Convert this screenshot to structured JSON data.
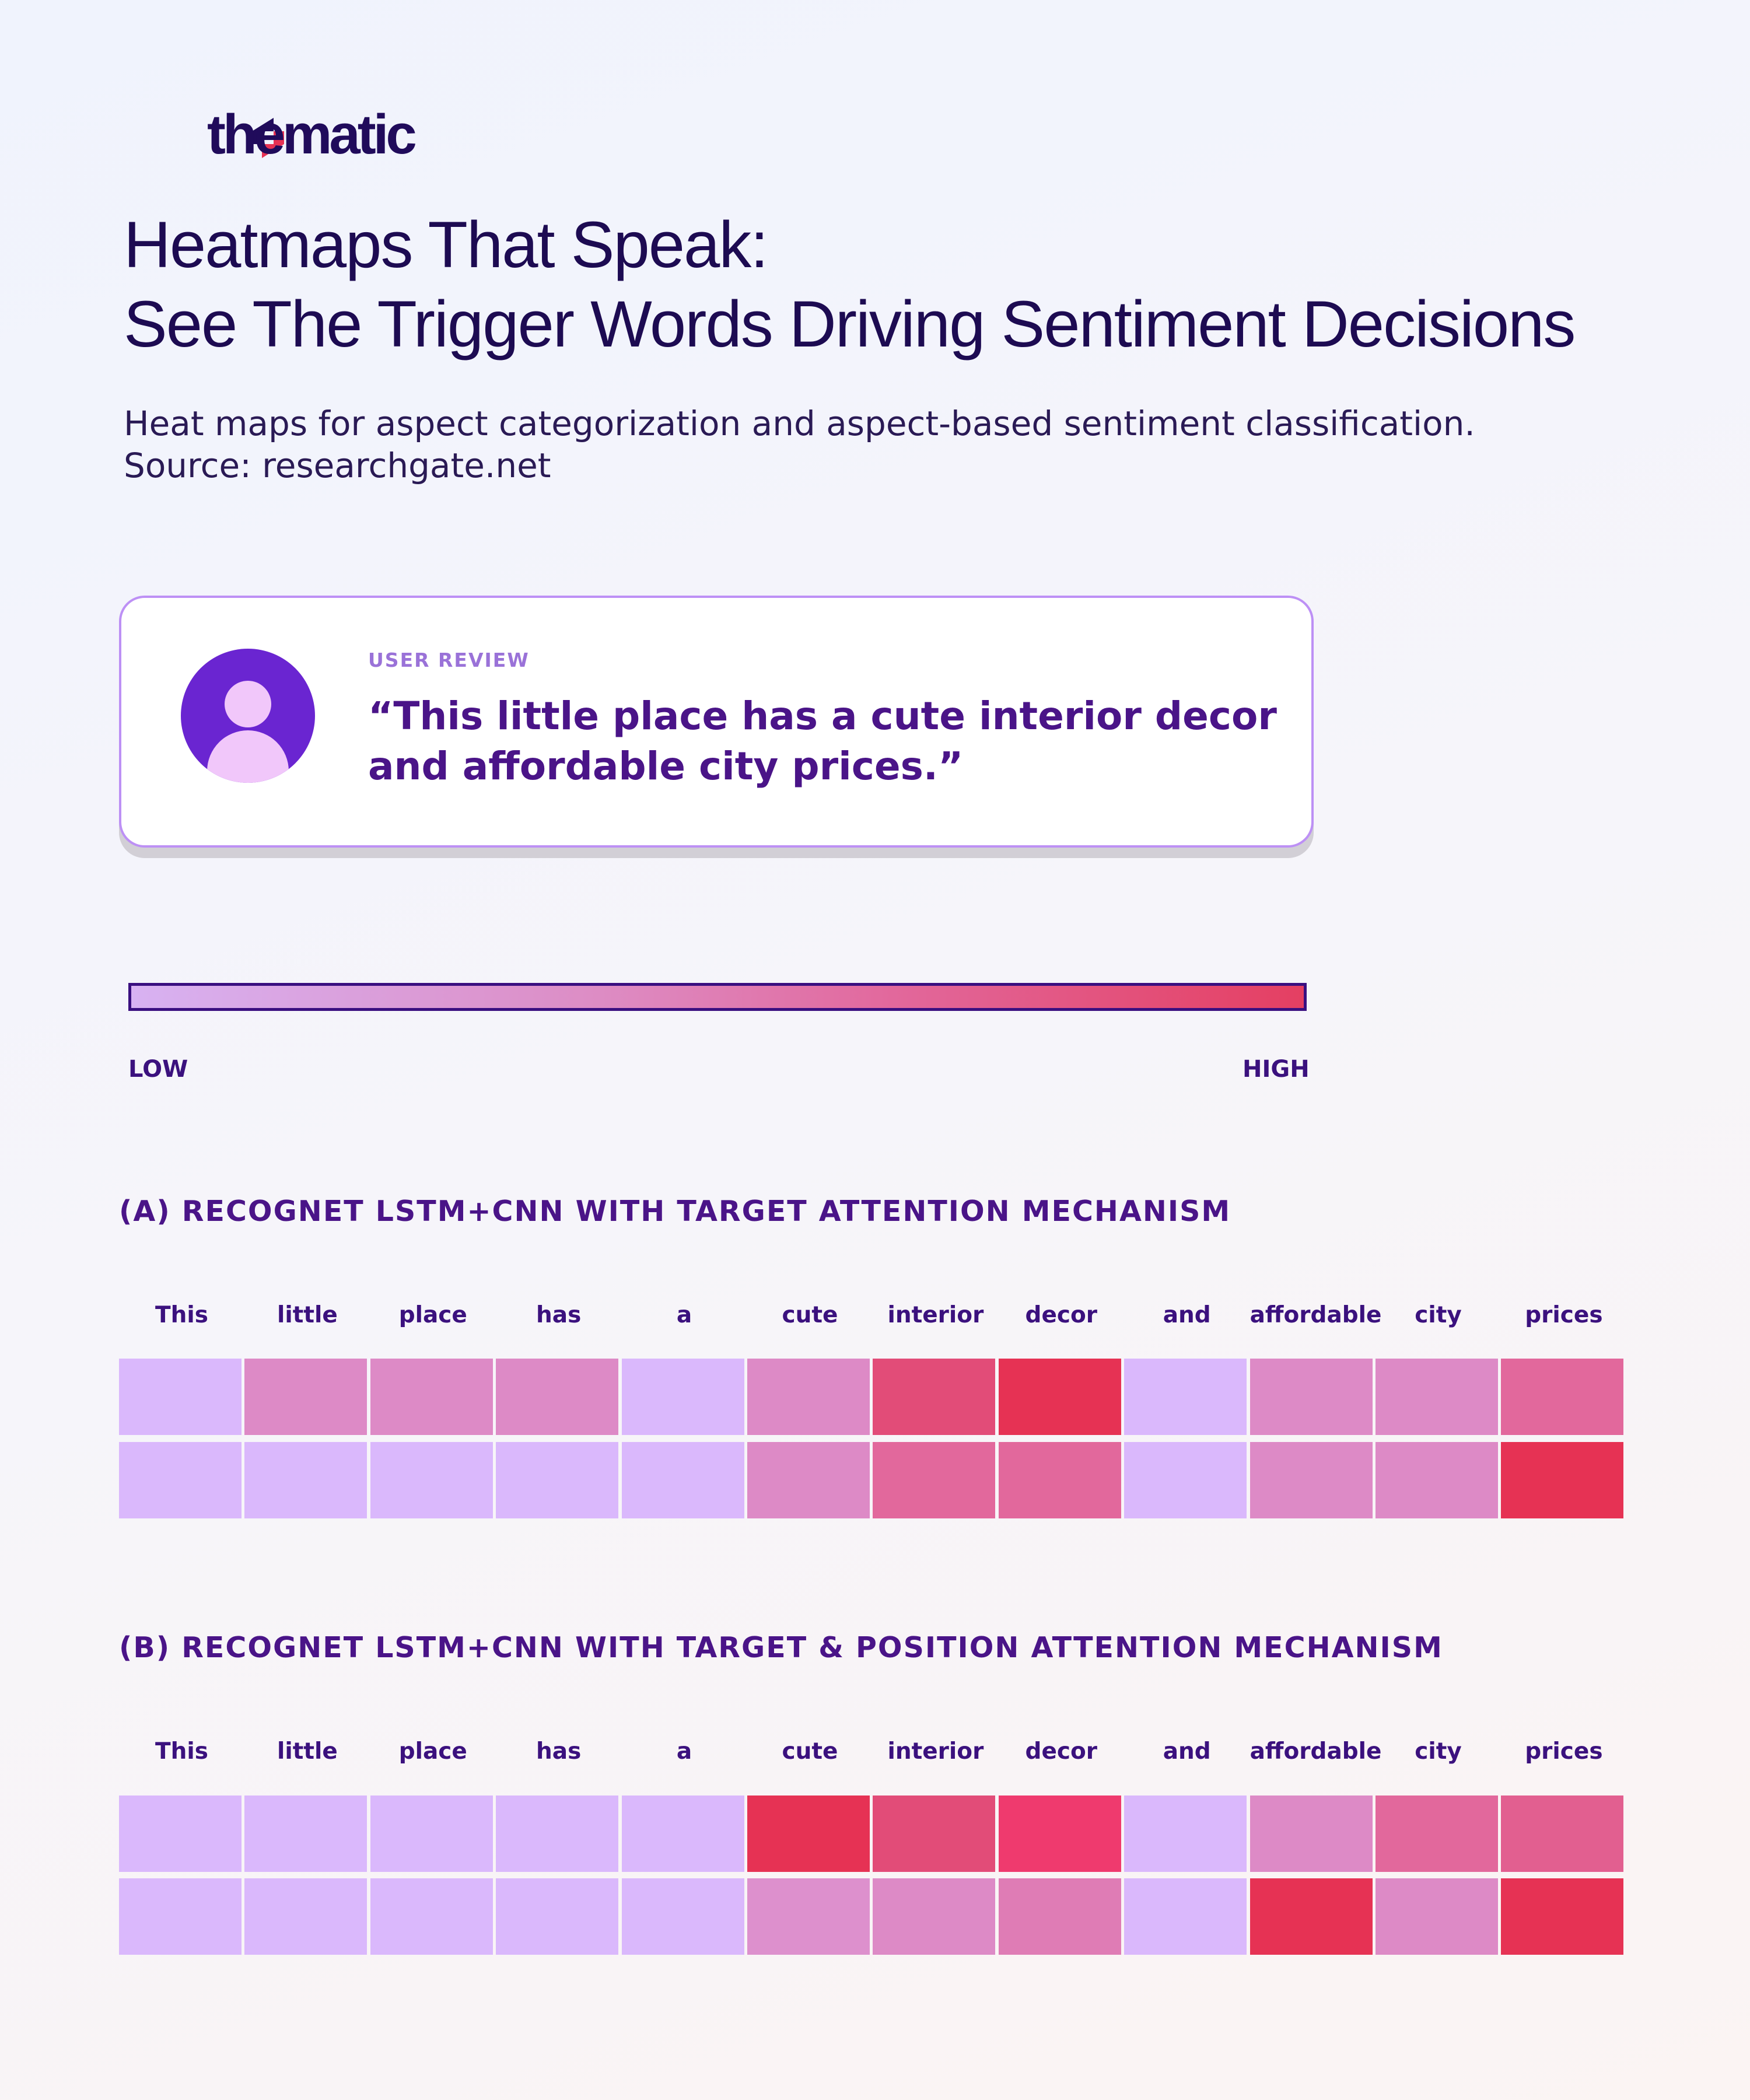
{
  "brand": {
    "name": "thematic",
    "colors": {
      "navy": "#200b5b",
      "red": "#e63254"
    }
  },
  "header": {
    "title_line1": "Heatmaps That Speak:",
    "title_line2": "See The Trigger Words Driving Sentiment Decisions",
    "subtitle_line1": "Heat maps for aspect categorization and aspect-based sentiment classification.",
    "subtitle_line2": "Source: researchgate.net"
  },
  "review_card": {
    "label": "USER REVIEW",
    "quote_line1": "“This little place has a cute interior decor",
    "quote_line2": "and affordable city prices.”",
    "icon": "user-avatar-icon"
  },
  "legend": {
    "low": "LOW",
    "high": "HIGH",
    "low_color": "#dab8fc",
    "high_color": "#e63254"
  },
  "chart_data": [
    {
      "type": "heatmap",
      "title": "(A) RECOGNET LSTM+CNN WITH TARGET ATTENTION MECHANISM",
      "categories": [
        "This",
        "little",
        "place",
        "has",
        "a",
        "cute",
        "interior",
        "decor",
        "and",
        "affordable",
        "city",
        "prices"
      ],
      "rows": [
        [
          0,
          0.4,
          0.4,
          0.4,
          0,
          0.4,
          0.8,
          1,
          0,
          0.4,
          0.4,
          0.65
        ],
        [
          0,
          0,
          0,
          0,
          0,
          0.4,
          0.65,
          0.65,
          0,
          0.4,
          0.4,
          1
        ]
      ],
      "scale": [
        0,
        1
      ]
    },
    {
      "type": "heatmap",
      "title": "(B) RECOGNET LSTM+CNN WITH TARGET & POSITION ATTENTION MECHANISM",
      "categories": [
        "This",
        "little",
        "place",
        "has",
        "a",
        "cute",
        "interior",
        "decor",
        "and",
        "affordable",
        "city",
        "prices"
      ],
      "rows": [
        [
          0,
          0,
          0,
          0,
          0,
          1,
          0.8,
          0.9,
          0,
          0.4,
          0.65,
          0.7
        ],
        [
          0,
          0,
          0,
          0,
          0,
          0.35,
          0.4,
          0.5,
          0,
          1,
          0.4,
          1
        ]
      ],
      "scale": [
        0,
        1
      ]
    }
  ]
}
